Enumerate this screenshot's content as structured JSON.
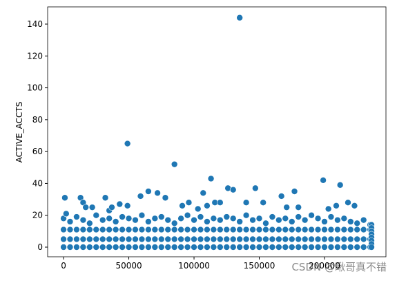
{
  "chart_data": {
    "type": "scatter",
    "ylabel": "ACTIVE_ACCTS",
    "watermark": "CSDN @瞅哥真不错",
    "color": "#1f77b4",
    "xlim": [
      -12200,
      247100
    ],
    "ylim": [
      -6.05,
      150.8
    ],
    "xticks": [
      0,
      50000,
      100000,
      150000,
      200000
    ],
    "yticks": [
      0,
      20,
      40,
      60,
      80,
      100,
      120,
      140
    ],
    "x": [
      0,
      5000,
      10000,
      15000,
      20000,
      25000,
      30000,
      35000,
      40000,
      45000,
      50000,
      55000,
      60000,
      65000,
      70000,
      75000,
      80000,
      85000,
      90000,
      95000,
      100000,
      105000,
      110000,
      115000,
      120000,
      125000,
      130000,
      135000,
      140000,
      145000,
      150000,
      155000,
      160000,
      165000,
      170000,
      175000,
      180000,
      185000,
      190000,
      195000,
      200000,
      205000,
      210000,
      215000,
      220000,
      225000,
      230000,
      235000,
      0,
      5000,
      10000,
      15000,
      20000,
      25000,
      30000,
      35000,
      40000,
      45000,
      50000,
      55000,
      60000,
      65000,
      70000,
      75000,
      80000,
      85000,
      90000,
      95000,
      100000,
      105000,
      110000,
      115000,
      120000,
      125000,
      130000,
      135000,
      140000,
      145000,
      150000,
      155000,
      160000,
      165000,
      170000,
      175000,
      180000,
      185000,
      190000,
      195000,
      200000,
      205000,
      210000,
      215000,
      220000,
      225000,
      230000,
      235000,
      0,
      5000,
      10000,
      15000,
      20000,
      25000,
      30000,
      35000,
      40000,
      45000,
      50000,
      55000,
      60000,
      65000,
      70000,
      75000,
      80000,
      85000,
      90000,
      95000,
      100000,
      105000,
      110000,
      115000,
      120000,
      125000,
      130000,
      135000,
      140000,
      145000,
      150000,
      155000,
      160000,
      165000,
      170000,
      175000,
      180000,
      185000,
      190000,
      195000,
      200000,
      205000,
      210000,
      215000,
      220000,
      225000,
      230000,
      235000,
      0,
      5000,
      10000,
      15000,
      20000,
      25000,
      30000,
      35000,
      40000,
      45000,
      50000,
      55000,
      60000,
      65000,
      70000,
      75000,
      80000,
      85000,
      90000,
      95000,
      100000,
      105000,
      110000,
      115000,
      120000,
      125000,
      130000,
      135000,
      140000,
      145000,
      150000,
      155000,
      160000,
      165000,
      170000,
      175000,
      180000,
      185000,
      190000,
      195000,
      200000,
      205000,
      210000,
      215000,
      220000,
      225000,
      230000,
      235000,
      1000,
      2000,
      13000,
      15000,
      17000,
      22000,
      32000,
      35000,
      37000,
      43000,
      49000,
      49000,
      59000,
      65000,
      72000,
      78000,
      85000,
      91000,
      96000,
      103000,
      107000,
      110000,
      113000,
      116000,
      120000,
      126000,
      130000,
      135000,
      140000,
      147000,
      153000,
      167000,
      171000,
      177000,
      180000,
      199000,
      203000,
      209000,
      212000,
      218000,
      223000,
      236000,
      236000,
      236000,
      236000,
      236000,
      236000,
      236000,
      236000
    ],
    "y": [
      0,
      0,
      0,
      0,
      0,
      0,
      0,
      0,
      0,
      0,
      0,
      0,
      0,
      0,
      0,
      0,
      0,
      0,
      0,
      0,
      0,
      0,
      0,
      0,
      0,
      0,
      0,
      0,
      0,
      0,
      0,
      0,
      0,
      0,
      0,
      0,
      0,
      0,
      0,
      0,
      0,
      0,
      0,
      0,
      0,
      0,
      0,
      0,
      5,
      5,
      5,
      5,
      5,
      5,
      5,
      5,
      5,
      5,
      5,
      5,
      5,
      5,
      5,
      5,
      5,
      5,
      5,
      5,
      5,
      5,
      5,
      5,
      5,
      5,
      5,
      5,
      5,
      5,
      5,
      5,
      5,
      5,
      5,
      5,
      5,
      5,
      5,
      5,
      5,
      5,
      5,
      5,
      5,
      5,
      5,
      5,
      11,
      11,
      11,
      11,
      11,
      11,
      11,
      11,
      11,
      11,
      11,
      11,
      11,
      11,
      11,
      11,
      11,
      11,
      11,
      11,
      11,
      11,
      11,
      11,
      11,
      11,
      11,
      11,
      11,
      11,
      11,
      11,
      11,
      11,
      11,
      11,
      11,
      11,
      11,
      11,
      11,
      11,
      11,
      11,
      11,
      11,
      11,
      11,
      18,
      16,
      19,
      17,
      15,
      20,
      17,
      18,
      16,
      19,
      18,
      17,
      20,
      16,
      18,
      19,
      17,
      15,
      18,
      20,
      17,
      19,
      16,
      18,
      17,
      19,
      18,
      16,
      20,
      17,
      18,
      15,
      19,
      17,
      18,
      16,
      19,
      17,
      20,
      18,
      16,
      19,
      17,
      18,
      16,
      15,
      17,
      14,
      31,
      21,
      31,
      28,
      25,
      25,
      31,
      23,
      25,
      27,
      65,
      26,
      32,
      35,
      34,
      31,
      52,
      26,
      28,
      24,
      34,
      26,
      43,
      28,
      28,
      37,
      36,
      144,
      28,
      37,
      28,
      32,
      25,
      35,
      25,
      42,
      24,
      26,
      39,
      28,
      26,
      14,
      12,
      10,
      8,
      6,
      4,
      2,
      0
    ]
  }
}
